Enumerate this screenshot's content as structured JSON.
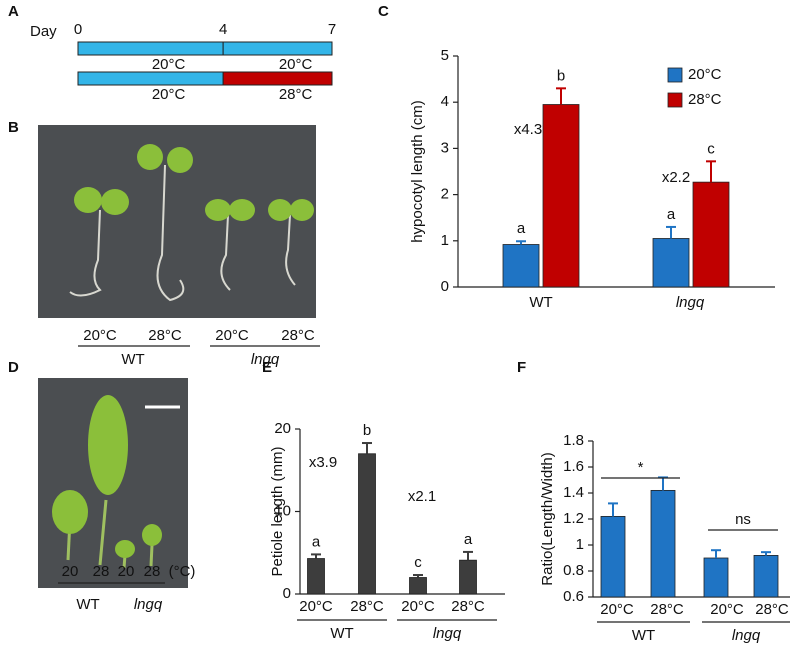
{
  "panel_labels": [
    "A",
    "B",
    "C",
    "D",
    "E",
    "F"
  ],
  "timeline": {
    "label": "Day",
    "ticks": [
      0,
      4,
      7
    ],
    "rows": [
      {
        "segments": [
          {
            "start": 0,
            "end": 4,
            "label": "20°C",
            "color": "#33b5e8"
          },
          {
            "start": 4,
            "end": 7,
            "label": "20°C",
            "color": "#33b5e8"
          }
        ]
      },
      {
        "segments": [
          {
            "start": 0,
            "end": 4,
            "label": "20°C",
            "color": "#33b5e8"
          },
          {
            "start": 4,
            "end": 7,
            "label": "28°C",
            "color": "#c00000"
          }
        ]
      }
    ]
  },
  "photo_b": {
    "labels": [
      "20°C",
      "28°C",
      "20°C",
      "28°C"
    ],
    "groups": [
      "WT",
      "lngq"
    ]
  },
  "photo_d": {
    "labels": [
      "20",
      "28",
      "20",
      "28"
    ],
    "unit": "(°C)",
    "groups": [
      "WT",
      "lngq"
    ]
  },
  "chart_data": [
    {
      "type": "bar",
      "ylabel": "hypocotyl length (cm)",
      "categories": [
        "WT",
        "lngq"
      ],
      "series": [
        {
          "name": "20°C",
          "color": "#1f74c4",
          "values": [
            0.92,
            1.05
          ],
          "errors": [
            0.07,
            0.25
          ],
          "letters": [
            "a",
            "a"
          ]
        },
        {
          "name": "28°C",
          "color": "#c00000",
          "values": [
            3.95,
            2.27
          ],
          "errors": [
            0.35,
            0.45
          ],
          "letters": [
            "b",
            "c"
          ]
        }
      ],
      "annotations": [
        "x4.3",
        "x2.2"
      ],
      "ylim": [
        0,
        5
      ],
      "yticks": [
        0,
        1,
        2,
        3,
        4,
        5
      ],
      "legend": "top-right"
    },
    {
      "type": "bar",
      "ylabel": "Petiole length (mm)",
      "categories": [
        "20°C",
        "28°C",
        "20°C",
        "28°C"
      ],
      "groups": [
        "WT",
        "lngq"
      ],
      "series": [
        {
          "color": "#3d3d3d",
          "values": [
            4.3,
            17,
            2,
            4.1
          ],
          "errors": [
            0.5,
            1.3,
            0.3,
            1.0
          ],
          "letters": [
            "a",
            "b",
            "c",
            "a"
          ]
        }
      ],
      "annotations": [
        "x3.9",
        "x2.1"
      ],
      "ylim": [
        0,
        20
      ],
      "yticks": [
        0,
        10,
        20
      ]
    },
    {
      "type": "bar",
      "ylabel": "Ratio(Length/Width)",
      "categories": [
        "20°C",
        "28°C",
        "20°C",
        "28°C"
      ],
      "groups": [
        "WT",
        "lngq"
      ],
      "series": [
        {
          "color": "#1f74c4",
          "values": [
            1.22,
            1.42,
            0.9,
            0.92
          ],
          "errors": [
            0.1,
            0.1,
            0.06,
            0.025
          ]
        }
      ],
      "significance": [
        "*",
        "ns"
      ],
      "ylim": [
        0.6,
        1.8
      ],
      "yticks": [
        0.6,
        0.8,
        1,
        1.2,
        1.4,
        1.6,
        1.8
      ]
    }
  ]
}
